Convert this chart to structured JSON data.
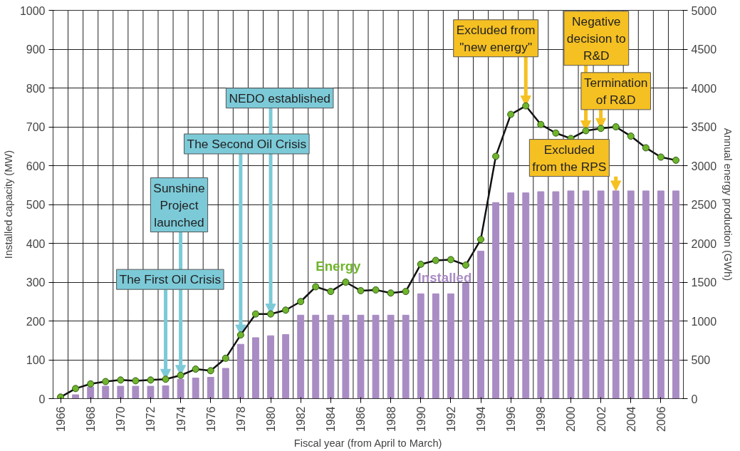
{
  "chart_data": {
    "type": "bar",
    "xlabel": "Fiscal year (from April to March)",
    "ylabel": "Installed capacity (MW)",
    "y2label": "Annual energy production (GWh)",
    "x": [
      1966,
      1967,
      1968,
      1969,
      1970,
      1971,
      1972,
      1973,
      1974,
      1975,
      1976,
      1977,
      1978,
      1979,
      1980,
      1981,
      1982,
      1983,
      1984,
      1985,
      1986,
      1987,
      1988,
      1989,
      1990,
      1991,
      1992,
      1993,
      1994,
      1995,
      1996,
      1997,
      1998,
      1999,
      2000,
      2001,
      2002,
      2003,
      2004,
      2005,
      2006,
      2007
    ],
    "xlim": [
      1965.5,
      2007.5
    ],
    "xticks": [
      1966,
      1968,
      1970,
      1972,
      1974,
      1976,
      1978,
      1980,
      1982,
      1984,
      1986,
      1988,
      1990,
      1992,
      1994,
      1996,
      1998,
      2000,
      2002,
      2004,
      2006
    ],
    "ylim": [
      0,
      1000
    ],
    "yticks": [
      0,
      100,
      200,
      300,
      400,
      500,
      600,
      700,
      800,
      900,
      1000
    ],
    "y2lim": [
      0,
      5000
    ],
    "y2ticks": [
      0,
      500,
      1000,
      1500,
      2000,
      2500,
      3000,
      3500,
      4000,
      4500,
      5000
    ],
    "series": [
      {
        "name": "Installed",
        "color": "#a98cc4",
        "values": [
          0,
          10,
          30,
          32,
          32,
          32,
          32,
          33,
          50,
          53,
          55,
          78,
          140,
          157,
          162,
          165,
          215,
          215,
          215,
          215,
          215,
          215,
          215,
          215,
          270,
          270,
          270,
          297,
          380,
          505,
          530,
          530,
          533,
          533,
          535,
          535,
          535,
          535,
          535,
          535,
          535,
          535
        ]
      },
      {
        "name": "Energy",
        "type": "line",
        "axis": "y2",
        "color": "#6fb52c",
        "values": [
          20,
          130,
          190,
          220,
          240,
          230,
          240,
          250,
          300,
          380,
          360,
          520,
          820,
          1090,
          1090,
          1140,
          1250,
          1440,
          1380,
          1500,
          1390,
          1400,
          1360,
          1380,
          1730,
          1780,
          1790,
          1720,
          2050,
          3120,
          3660,
          3770,
          3530,
          3420,
          3350,
          3450,
          3480,
          3500,
          3380,
          3230,
          3110,
          3070
        ]
      }
    ],
    "annotations": [
      {
        "text": "The First Oil Crisis",
        "x": 1973,
        "y": 50
      },
      {
        "text": "Sunshine\nProject\nlaunched",
        "x": 1974,
        "y": 60
      },
      {
        "text": "The Second Oil Crisis",
        "x": 1978,
        "y": 164
      },
      {
        "text": "NEDO established",
        "x": 1980,
        "y": 218
      },
      {
        "text": "Excluded from\n\"new energy\"",
        "x": 1997,
        "y": 754
      },
      {
        "text": "Negative\ndecision to\nR&D",
        "x": 2001,
        "y": 690
      },
      {
        "text": "Termination\nof R&D",
        "x": 2002,
        "y": 696
      },
      {
        "text": "Excluded\nfrom the RPS",
        "x": 2003,
        "y": 535
      }
    ],
    "grid": true,
    "marker": "circle"
  }
}
